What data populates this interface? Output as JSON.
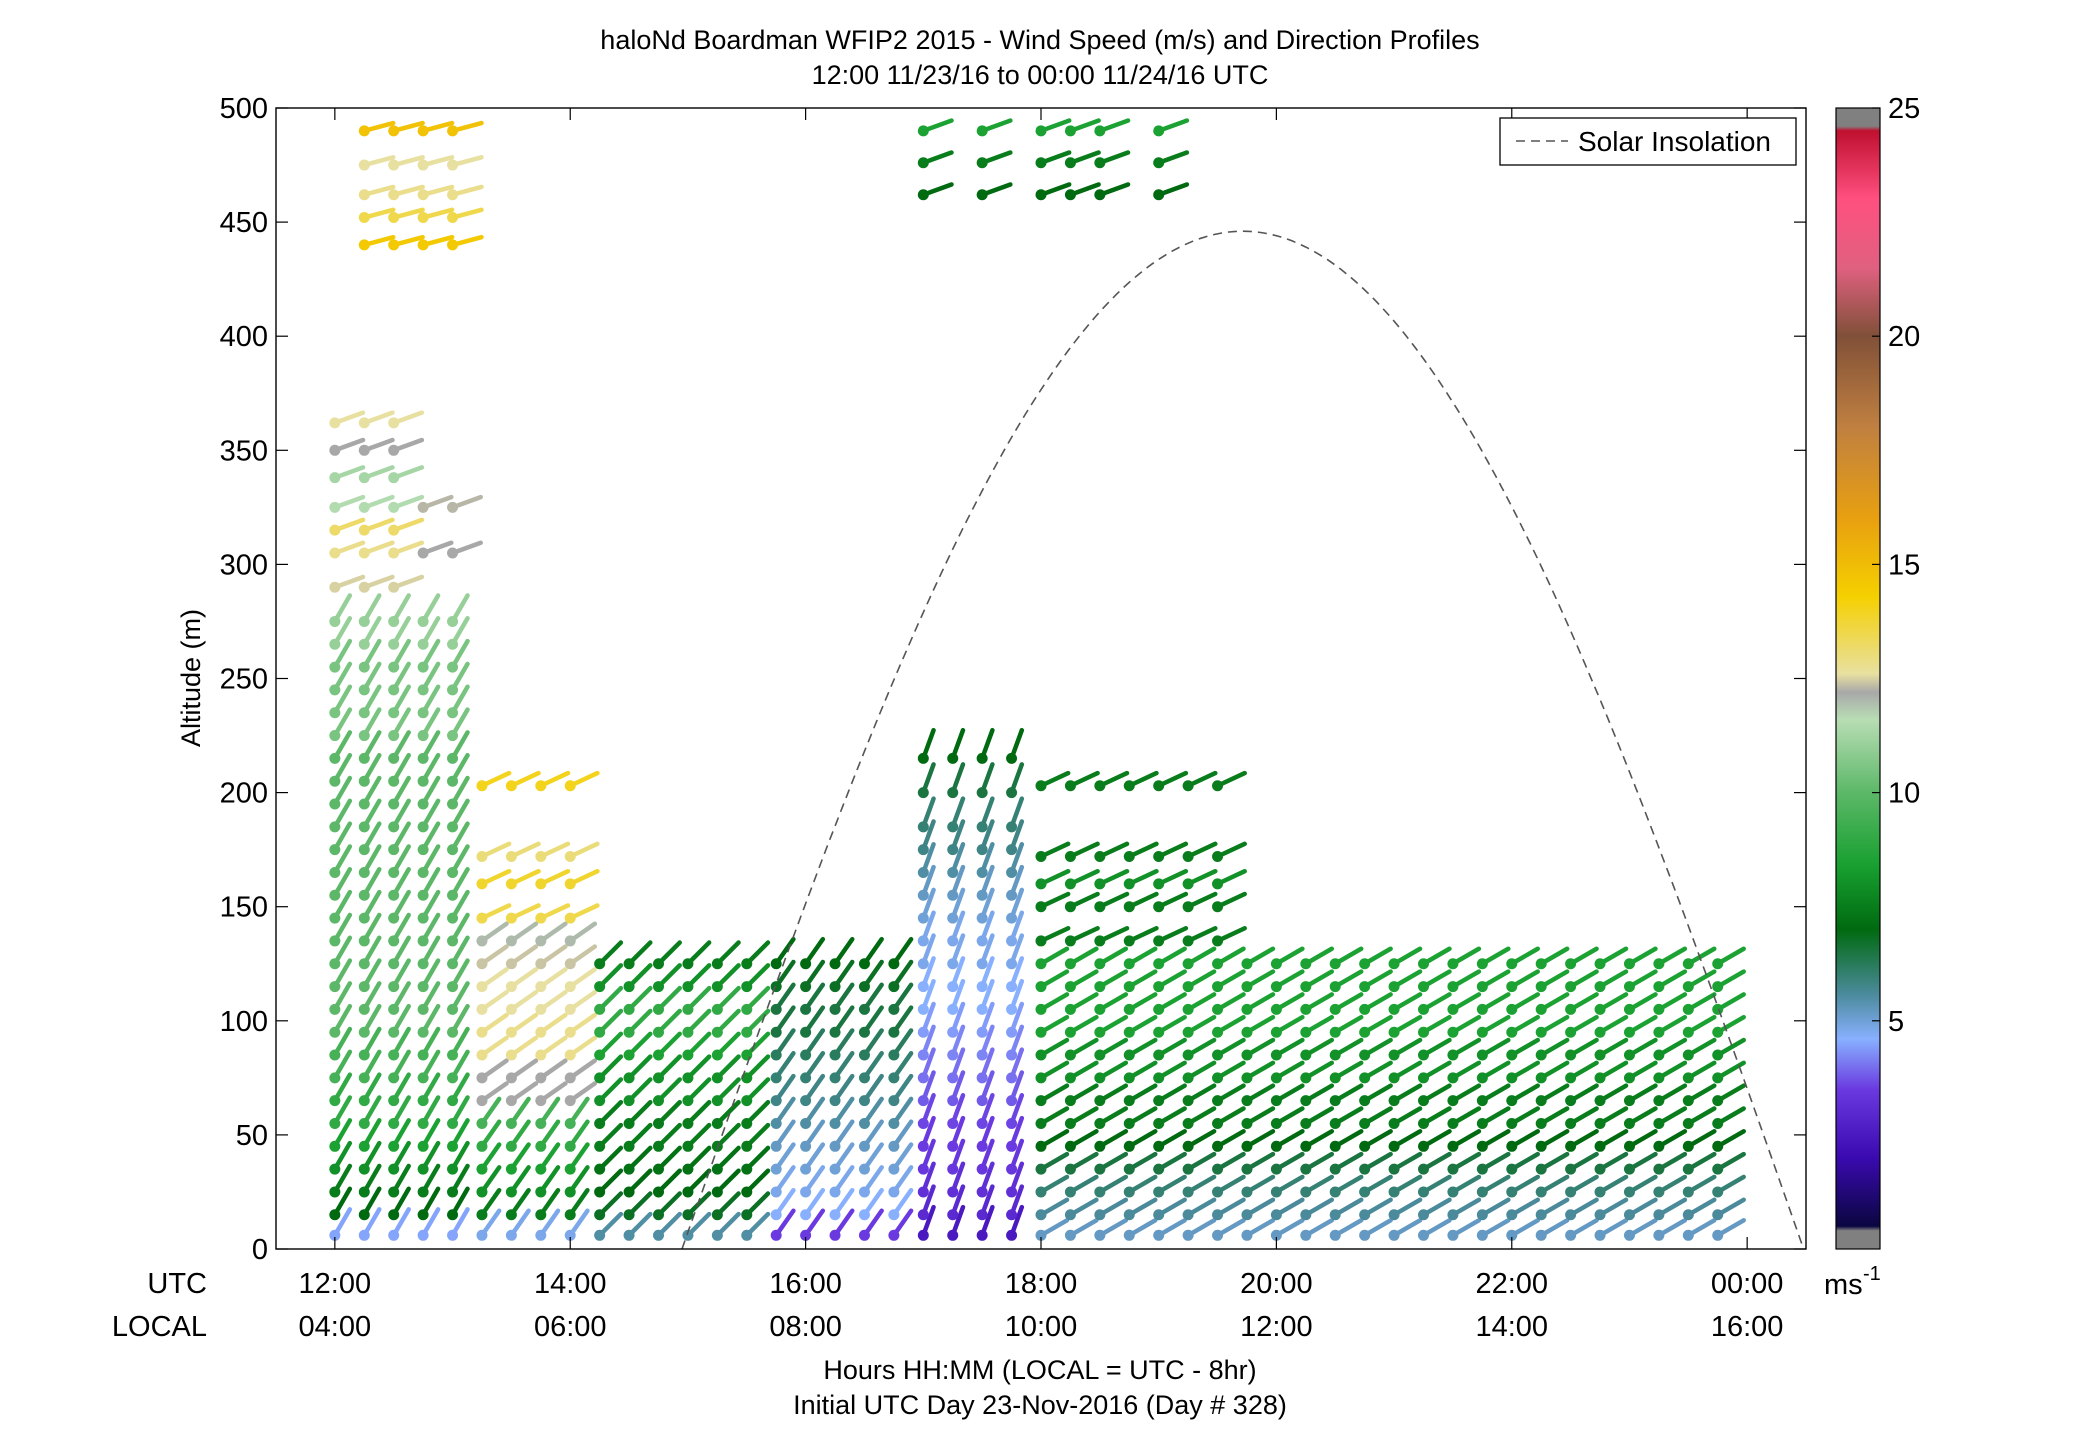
{
  "chart_data": {
    "type": "scatter",
    "title": "haloNd Boardman WFIP2 2015 - Wind Speed (m/s) and Direction Profiles",
    "subtitle": "12:00 11/23/16 to 00:00 11/24/16  UTC",
    "ylabel": "Altitude (m)",
    "xlabel": "Hours HH:MM  (LOCAL = UTC - 8hr)",
    "footnote": "Initial UTC Day 23-Nov-2016 (Day # 328)",
    "row_labels": {
      "utc": "UTC",
      "local": "LOCAL"
    },
    "xlim_hours": [
      11.5,
      24.5
    ],
    "ylim": [
      0,
      500
    ],
    "x_ticks": [
      {
        "hour": 12,
        "utc": "12:00",
        "local": "04:00"
      },
      {
        "hour": 14,
        "utc": "14:00",
        "local": "06:00"
      },
      {
        "hour": 16,
        "utc": "16:00",
        "local": "08:00"
      },
      {
        "hour": 18,
        "utc": "18:00",
        "local": "10:00"
      },
      {
        "hour": 20,
        "utc": "20:00",
        "local": "12:00"
      },
      {
        "hour": 22,
        "utc": "22:00",
        "local": "14:00"
      },
      {
        "hour": 24,
        "utc": "00:00",
        "local": "16:00"
      }
    ],
    "y_ticks": [
      0,
      50,
      100,
      150,
      200,
      250,
      300,
      350,
      400,
      450,
      500
    ],
    "legend": {
      "label": "Solar Insolation",
      "placement": "top-right"
    },
    "solar_insolation": {
      "start_hour": 14.95,
      "peak_hour": 19.72,
      "end_hour": 24.48,
      "peak_altitude": 446
    },
    "colorbar": {
      "range": [
        0,
        25
      ],
      "ticks": [
        5,
        10,
        15,
        20,
        25
      ],
      "unit_label": "ms",
      "unit_exponent": "-1",
      "stops": [
        {
          "v": 0.0,
          "c": "#808080"
        },
        {
          "v": 0.4,
          "c": "#808080"
        },
        {
          "v": 0.5,
          "c": "#0a0640"
        },
        {
          "v": 2.0,
          "c": "#3a0ab0"
        },
        {
          "v": 3.5,
          "c": "#6a3ae0"
        },
        {
          "v": 4.6,
          "c": "#88b0ff"
        },
        {
          "v": 5.6,
          "c": "#4a8a9a"
        },
        {
          "v": 7.0,
          "c": "#006a10"
        },
        {
          "v": 8.4,
          "c": "#18a030"
        },
        {
          "v": 10.0,
          "c": "#5cb868"
        },
        {
          "v": 11.6,
          "c": "#b8ddb4"
        },
        {
          "v": 12.2,
          "c": "#a8a8a8"
        },
        {
          "v": 12.6,
          "c": "#e8e0a0"
        },
        {
          "v": 14.3,
          "c": "#f5d000"
        },
        {
          "v": 16.0,
          "c": "#e8a010"
        },
        {
          "v": 18.0,
          "c": "#c08040"
        },
        {
          "v": 20.0,
          "c": "#805038"
        },
        {
          "v": 21.5,
          "c": "#e06080"
        },
        {
          "v": 23.0,
          "c": "#ff5080"
        },
        {
          "v": 24.5,
          "c": "#c01030"
        },
        {
          "v": 24.6,
          "c": "#808080"
        },
        {
          "v": 25.0,
          "c": "#808080"
        }
      ]
    },
    "series": [
      {
        "times": [
          12.0,
          12.25,
          12.5,
          12.75,
          13.0
        ],
        "altitudes": [
          6,
          15,
          25,
          35,
          45,
          55,
          65,
          75,
          85,
          95,
          105,
          115,
          125,
          135,
          145,
          155,
          165,
          175,
          185,
          195,
          205,
          215,
          225,
          235,
          245,
          255,
          265,
          275
        ],
        "speed": [
          4.5,
          7,
          7.5,
          8,
          8.5,
          9,
          9,
          9.5,
          9.5,
          10,
          10,
          10,
          10,
          10,
          10,
          10,
          10,
          10,
          10,
          10,
          10,
          10,
          10.5,
          10.5,
          10.5,
          10.5,
          11,
          11
        ],
        "dir_deg": 210
      },
      {
        "times": [
          12.0,
          12.25,
          12.5
        ],
        "altitudes": [
          290,
          305,
          315,
          325,
          338,
          350,
          362
        ],
        "speed": [
          12.5,
          12.8,
          13.2,
          11.5,
          11.3,
          12.2,
          12.6
        ],
        "dir_deg": 250
      },
      {
        "times": [
          12.75,
          13.0
        ],
        "altitudes": [
          305,
          325
        ],
        "speed": [
          12.2,
          12.3
        ],
        "dir_deg": 250
      },
      {
        "times": [
          12.25,
          12.5,
          12.75,
          13.0
        ],
        "altitudes": [
          440,
          452,
          462,
          475,
          490
        ],
        "speed": [
          14.5,
          13.5,
          12.8,
          12.6,
          14.8
        ],
        "dir_deg": 255
      },
      {
        "times": [
          13.25,
          13.5,
          13.75,
          14.0
        ],
        "altitudes": [
          6,
          15,
          25,
          35,
          45,
          55
        ],
        "speed": [
          4.8,
          7.5,
          8,
          8.5,
          9,
          9.5
        ],
        "dir_deg": 215
      },
      {
        "times": [
          13.25,
          13.5,
          13.75,
          14.0
        ],
        "altitudes": [
          65,
          75,
          85,
          95,
          105,
          115,
          125,
          135
        ],
        "speed": [
          12.2,
          12.2,
          12.8,
          12.8,
          12.6,
          12.6,
          12.4,
          12
        ],
        "dir_deg": 235
      },
      {
        "times": [
          13.25,
          13.5,
          13.75,
          14.0
        ],
        "altitudes": [
          145,
          160,
          172,
          203
        ],
        "speed": [
          13.5,
          13.8,
          13,
          14
        ],
        "dir_deg": 245
      },
      {
        "times": [
          14.25,
          14.5,
          14.75,
          15.0,
          15.25,
          15.5
        ],
        "altitudes": [
          6,
          15,
          25,
          35,
          45,
          55,
          65,
          75,
          85,
          95,
          105,
          115,
          125
        ],
        "speed": [
          5.5,
          6.8,
          7,
          7.2,
          7.5,
          7.5,
          8,
          8,
          8.5,
          9,
          9,
          8,
          7.5
        ],
        "dir_deg": 225
      },
      {
        "times": [
          15.75,
          16.0,
          16.25,
          16.5,
          16.75
        ],
        "altitudes": [
          6,
          15,
          25,
          35,
          45,
          55,
          65,
          75,
          85,
          95,
          105,
          115,
          125
        ],
        "speed": [
          3.5,
          4.6,
          4.8,
          5,
          5.2,
          5.5,
          5.8,
          6,
          6.2,
          6.5,
          6.5,
          6.8,
          7
        ],
        "dir_deg": 215
      },
      {
        "times": [
          17.0,
          17.25,
          17.5,
          17.75
        ],
        "altitudes": [
          6,
          15,
          25,
          35,
          45,
          55,
          65,
          75,
          85,
          95,
          105,
          115,
          125,
          135,
          145,
          155,
          165,
          175,
          185,
          200,
          215
        ],
        "speed": [
          2.5,
          3,
          3.2,
          3.4,
          3.5,
          3.6,
          3.8,
          4,
          4.2,
          4.4,
          4.6,
          4.6,
          4.8,
          4.8,
          5,
          5.2,
          5.5,
          5.8,
          6,
          6.5,
          7
        ],
        "dir_deg": 200
      },
      {
        "times": [
          18.0,
          18.25,
          18.5,
          18.75,
          19.0,
          19.25,
          19.5,
          19.75,
          20.0,
          20.25,
          20.5,
          20.75,
          21.0,
          21.25,
          21.5,
          21.75,
          22.0,
          22.25,
          22.5,
          22.75,
          23.0,
          23.25,
          23.5,
          23.75
        ],
        "altitudes": [
          6,
          15,
          25,
          35,
          45,
          55,
          65,
          75,
          85,
          95,
          105,
          115,
          125
        ],
        "speed": [
          5.2,
          5.6,
          6,
          6.5,
          7,
          7.5,
          7.5,
          8,
          8,
          8.5,
          8.5,
          8.5,
          8.5
        ],
        "dir_deg": 240
      },
      {
        "times": [
          18.0,
          18.25,
          18.5,
          18.75,
          19.0,
          19.25,
          19.5
        ],
        "altitudes": [
          135,
          150,
          160,
          172,
          203
        ],
        "speed": [
          7.5,
          7.5,
          8,
          7.5,
          7.5
        ],
        "dir_deg": 245
      },
      {
        "times": [
          17.0,
          17.5,
          18.0,
          18.25,
          18.5,
          19.0
        ],
        "altitudes": [
          462,
          476,
          490
        ],
        "speed": [
          7,
          7.5,
          8.5
        ],
        "dir_deg": 250
      }
    ]
  }
}
